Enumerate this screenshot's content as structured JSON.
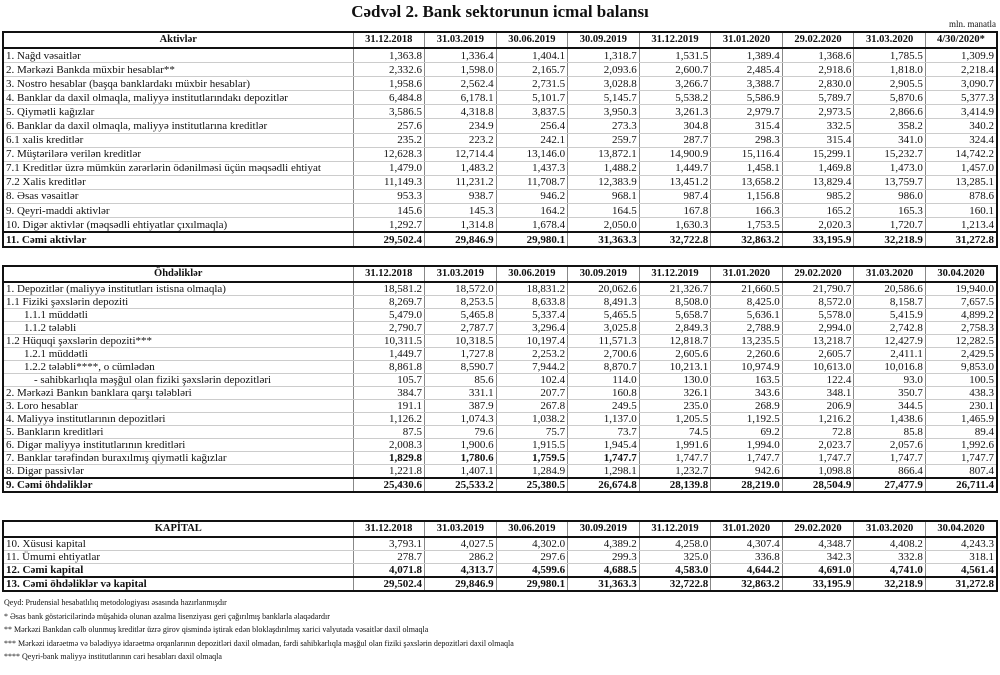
{
  "title": "Cədvəl 2. Bank sektorunun icmal balansı",
  "unit": "mln. manatla",
  "sections": [
    {
      "header": "Aktivlər",
      "columns": [
        "31.12.2018",
        "31.03.2019",
        "30.06.2019",
        "30.09.2019",
        "31.12.2019",
        "31.01.2020",
        "29.02.2020",
        "31.03.2020",
        "4/30/2020*"
      ],
      "rows": [
        {
          "label": " 1. Nağd vəsaitlər",
          "values": [
            "1,363.8",
            "1,336.4",
            "1,404.1",
            "1,318.7",
            "1,531.5",
            "1,389.4",
            "1,368.6",
            "1,785.5",
            "1,309.9"
          ]
        },
        {
          "label": "2. Mərkəzi Bankda müxbir hesablar**",
          "values": [
            "2,332.6",
            "1,598.0",
            "2,165.7",
            "2,093.6",
            "2,600.7",
            "2,485.4",
            "2,918.6",
            "1,818.0",
            "2,218.4"
          ]
        },
        {
          "label": "3. Nostro hesablar (başqa banklardakı müxbir hesablar)",
          "values": [
            "1,958.6",
            "2,562.4",
            "2,731.5",
            "3,028.8",
            "3,266.7",
            "3,388.7",
            "2,830.0",
            "2,905.5",
            "3,090.7"
          ]
        },
        {
          "label": "4. Banklar da daxil olmaqla, maliyyə institutlarındakı depozitlər",
          "values": [
            "6,484.8",
            "6,178.1",
            "5,101.7",
            "5,145.7",
            "5,538.2",
            "5,586.9",
            "5,789.7",
            "5,870.6",
            "5,377.3"
          ]
        },
        {
          "label": "5. Qiymətli kağızlar",
          "values": [
            "3,586.5",
            "4,318.8",
            "3,837.5",
            "3,950.3",
            "3,261.3",
            "2,979.7",
            "2,973.5",
            "2,866.6",
            "3,414.9"
          ]
        },
        {
          "label": "6. Banklar da daxil olmaqla, maliyyə institutlarına kreditlər",
          "values": [
            "257.6",
            "234.9",
            "256.4",
            "273.3",
            "304.8",
            "315.4",
            "332.5",
            "358.2",
            "340.2"
          ]
        },
        {
          "label": "6.1 xalis kreditlər",
          "values": [
            "235.2",
            "223.2",
            "242.1",
            "259.7",
            "287.7",
            "298.3",
            "315.4",
            "341.0",
            "324.4"
          ]
        },
        {
          "label": "7. Müştərilərə verilən kreditlər",
          "values": [
            "12,628.3",
            "12,714.4",
            "13,146.0",
            "13,872.1",
            "14,900.9",
            "15,116.4",
            "15,299.1",
            "15,232.7",
            "14,742.2"
          ]
        },
        {
          "label": "7.1 Kreditlər üzrə mümkün zərərlərin ödənilməsi üçün məqsədli ehtiyat",
          "values": [
            "1,479.0",
            "1,483.2",
            "1,437.3",
            "1,488.2",
            "1,449.7",
            "1,458.1",
            "1,469.8",
            "1,473.0",
            "1,457.0"
          ]
        },
        {
          "label": "7.2 Xalis kreditlər",
          "values": [
            "11,149.3",
            "11,231.2",
            "11,708.7",
            "12,383.9",
            "13,451.2",
            "13,658.2",
            "13,829.4",
            "13,759.7",
            "13,285.1"
          ]
        },
        {
          "label": "8.  Əsas vəsaitlər",
          "values": [
            "953.3",
            "938.7",
            "946.2",
            "968.1",
            "987.4",
            "1,156.8",
            "985.2",
            "986.0",
            "878.6"
          ]
        },
        {
          "label": "9. Qeyri-maddi aktivlər",
          "values": [
            "145.6",
            "145.3",
            "164.2",
            "164.5",
            "167.8",
            "166.3",
            "165.2",
            "165.3",
            "160.1"
          ]
        },
        {
          "label": "10. Digər aktivlər (məqsədli ehtiyatlar çıxılmaqla)",
          "values": [
            "1,292.7",
            "1,314.8",
            "1,678.4",
            "2,050.0",
            "1,630.3",
            "1,753.5",
            "2,020.3",
            "1,720.7",
            "1,213.4"
          ]
        }
      ],
      "total": {
        "label": "11. Cəmi aktivlər",
        "values": [
          "29,502.4",
          "29,846.9",
          "29,980.1",
          "31,363.3",
          "32,722.8",
          "32,863.2",
          "33,195.9",
          "32,218.9",
          "31,272.8"
        ]
      }
    },
    {
      "header": "Öhdəliklər",
      "columns": [
        "31.12.2018",
        "31.03.2019",
        "30.06.2019",
        "30.09.2019",
        "31.12.2019",
        "31.01.2020",
        "29.02.2020",
        "31.03.2020",
        "30.04.2020"
      ],
      "rows": [
        {
          "label": " 1. Depozitlər (maliyyə institutları istisna olmaqla)",
          "values": [
            "18,581.2",
            "18,572.0",
            "18,831.2",
            "20,062.6",
            "21,326.7",
            "21,660.5",
            "21,790.7",
            "20,586.6",
            "19,940.0"
          ]
        },
        {
          "label": "1.1 Fiziki şəxslərin depoziti",
          "values": [
            "8,269.7",
            "8,253.5",
            "8,633.8",
            "8,491.3",
            "8,508.0",
            "8,425.0",
            "8,572.0",
            "8,158.7",
            "7,657.5"
          ]
        },
        {
          "label": "1.1.1 müddətli",
          "level": 2,
          "values": [
            "5,479.0",
            "5,465.8",
            "5,337.4",
            "5,465.5",
            "5,658.7",
            "5,636.1",
            "5,578.0",
            "5,415.9",
            "4,899.2"
          ]
        },
        {
          "label": "1.1.2 tələbli",
          "level": 2,
          "values": [
            "2,790.7",
            "2,787.7",
            "3,296.4",
            "3,025.8",
            "2,849.3",
            "2,788.9",
            "2,994.0",
            "2,742.8",
            "2,758.3"
          ]
        },
        {
          "label": "1.2 Hüquqi şəxslərin depoziti***",
          "values": [
            "10,311.5",
            "10,318.5",
            "10,197.4",
            "11,571.3",
            "12,818.7",
            "13,235.5",
            "13,218.7",
            "12,427.9",
            "12,282.5"
          ]
        },
        {
          "label": "1.2.1 müddətli",
          "level": 2,
          "values": [
            "1,449.7",
            "1,727.8",
            "2,253.2",
            "2,700.6",
            "2,605.6",
            "2,260.6",
            "2,605.7",
            "2,411.1",
            "2,429.5"
          ]
        },
        {
          "label": "1.2.2 tələbli****, o cümlədən",
          "level": 2,
          "values": [
            "8,861.8",
            "8,590.7",
            "7,944.2",
            "8,870.7",
            "10,213.1",
            "10,974.9",
            "10,613.0",
            "10,016.8",
            "9,853.0"
          ]
        },
        {
          "label": "- sahibkarlıqla məşğul olan fiziki şəxslərin depozitləri",
          "level": 3,
          "values": [
            "105.7",
            "85.6",
            "102.4",
            "114.0",
            "130.0",
            "163.5",
            "122.4",
            "93.0",
            "100.5"
          ]
        },
        {
          "label": "2. Mərkəzi Bankın banklara qarşı tələbləri",
          "values": [
            "384.7",
            "331.1",
            "207.7",
            "160.8",
            "326.1",
            "343.6",
            "348.1",
            "350.7",
            "438.3"
          ]
        },
        {
          "label": "3. Loro hesablar",
          "values": [
            "191.1",
            "387.9",
            "267.8",
            "249.5",
            "235.0",
            "268.9",
            "206.9",
            "344.5",
            "230.1"
          ]
        },
        {
          "label": "4. Maliyyə institutlarının  depozitləri",
          "values": [
            "1,126.2",
            "1,074.3",
            "1,038.2",
            "1,137.0",
            "1,205.5",
            "1,192.5",
            "1,216.2",
            "1,438.6",
            "1,465.9"
          ]
        },
        {
          "label": "5. Bankların kreditləri",
          "values": [
            "87.5",
            "79.6",
            "75.7",
            "73.7",
            "74.5",
            "69.2",
            "72.8",
            "85.8",
            "89.4"
          ]
        },
        {
          "label": "6. Digər maliyyə institutlarının kreditləri",
          "values": [
            "2,008.3",
            "1,900.6",
            "1,915.5",
            "1,945.4",
            "1,991.6",
            "1,994.0",
            "2,023.7",
            "2,057.6",
            "1,992.6"
          ]
        },
        {
          "label": "7. Banklar tərəfindən buraxılmış qiymətli kağızlar",
          "bold_values": 4,
          "values": [
            "1,829.8",
            "1,780.6",
            "1,759.5",
            "1,747.7",
            "1,747.7",
            "1,747.7",
            "1,747.7",
            "1,747.7",
            "1,747.7"
          ]
        },
        {
          "label": "8. Digər passivlər",
          "values": [
            "1,221.8",
            "1,407.1",
            "1,284.9",
            "1,298.1",
            "1,232.7",
            "942.6",
            "1,098.8",
            "866.4",
            "807.4"
          ]
        }
      ],
      "total": {
        "label": " 9. Cəmi öhdəliklər",
        "values": [
          "25,430.6",
          "25,533.2",
          "25,380.5",
          "26,674.8",
          "28,139.8",
          "28,219.0",
          "28,504.9",
          "27,477.9",
          "26,711.4"
        ]
      }
    },
    {
      "header": "KAPİTAL",
      "columns": [
        "31.12.2018",
        "31.03.2019",
        "30.06.2019",
        "30.09.2019",
        "31.12.2019",
        "31.01.2020",
        "29.02.2020",
        "31.03.2020",
        "30.04.2020"
      ],
      "rows": [
        {
          "label": "10. Xüsusi kapital",
          "values": [
            "3,793.1",
            "4,027.5",
            "4,302.0",
            "4,389.2",
            "4,258.0",
            "4,307.4",
            "4,348.7",
            "4,408.2",
            "4,243.3"
          ]
        },
        {
          "label": "11. Ümumi ehtiyatlar",
          "values": [
            "278.7",
            "286.2",
            "297.6",
            "299.3",
            "325.0",
            "336.8",
            "342.3",
            "332.8",
            "318.1"
          ]
        },
        {
          "label": "12. Cəmi kapital",
          "bold": true,
          "values": [
            "4,071.8",
            "4,313.7",
            "4,599.6",
            "4,688.5",
            "4,583.0",
            "4,644.2",
            "4,691.0",
            "4,741.0",
            "4,561.4"
          ]
        }
      ],
      "total": {
        "label": "13. Cəmi öhdəliklər və kapital",
        "values": [
          "29,502.4",
          "29,846.9",
          "29,980.1",
          "31,363.3",
          "32,722.8",
          "32,863.2",
          "33,195.9",
          "32,218.9",
          "31,272.8"
        ]
      }
    }
  ],
  "footnotes": [
    "Qeyd: Prudensial hesabatlılıq metodologiyası əsasında hazırlanmışdır",
    "* Əsas bank göstəricilərində müşahidə olunan azalma lisenziyası geri çağırılmış banklarla əlaqədardır",
    "** Mərkəzi Bankdan cəlb olunmuş kreditlər üzrə girov qismində iştirak edən bloklaşdırılmış xarici valyutada vəsaitlər daxil olmaqla",
    "*** Mərkəzi idarəetmə və bələdiyyə idarəetmə orqanlarının depozitləri daxil olmadan, fərdi sahibkarlıqla məşğul olan fiziki şəxslərin depozitləri daxil olmaqla",
    "**** Qeyri-bank maliyyə institutlarının cari hesabları daxil olmaqla"
  ]
}
